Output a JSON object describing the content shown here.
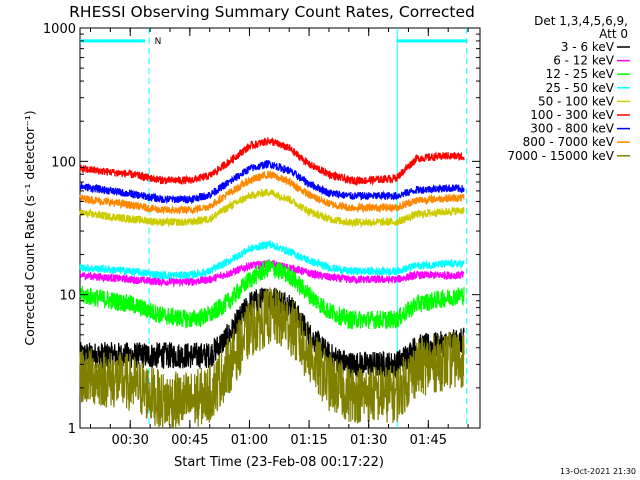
{
  "chart_data": {
    "type": "line",
    "title": "RHESSI Observing Summary Count Rates, Corrected",
    "xlabel": "Start Time (23-Feb-08 00:17:22)",
    "ylabel": "Corrected Count Rate (s⁻¹ detector⁻¹)",
    "x_scale": "time",
    "y_scale": "log",
    "xlim": [
      "00:17:22",
      "01:58:00"
    ],
    "ylim": [
      1,
      1000
    ],
    "x_ticks": [
      "00:30",
      "00:45",
      "01:00",
      "01:15",
      "01:30",
      "01:45"
    ],
    "y_ticks": [
      "1",
      "10",
      "100",
      "1000"
    ],
    "legend_header": [
      "Det 1,3,4,5,6,9,",
      "Att 0"
    ],
    "legend_position": "right, outside plot",
    "timestamp": "13-Oct-2021 21:30",
    "flag_label": "N",
    "vertical_markers": [
      {
        "time": "00:34:45",
        "style": "dashed",
        "color": "#00ffff"
      },
      {
        "time": "01:37:10",
        "style": "solid",
        "color": "#00ffff"
      },
      {
        "time": "01:54:40",
        "style": "dashed",
        "color": "#00ffff"
      }
    ],
    "bars_top": [
      {
        "from": "00:17:22",
        "to": "00:33:45",
        "level": 800
      },
      {
        "from": "01:37:10",
        "to": "01:54:40",
        "level": 800
      }
    ],
    "bar_color": "#00ffff",
    "series": [
      {
        "name": "3 - 6 keV",
        "color": "#000000",
        "times": [
          "00:17:22",
          "00:30",
          "00:38",
          "00:45",
          "00:50",
          "00:55",
          "01:00",
          "01:05",
          "01:10",
          "01:15",
          "01:20",
          "01:25",
          "01:30",
          "01:37",
          "01:42",
          "01:50",
          "01:54"
        ],
        "values": [
          3.5,
          3.5,
          3.5,
          3.5,
          3.5,
          5,
          8.5,
          9.5,
          8.5,
          5,
          3.5,
          3,
          3,
          3,
          4,
          4.3,
          4.5
        ]
      },
      {
        "name": "6 - 12 keV",
        "color": "#ff00ff",
        "times": [
          "00:17:22",
          "00:30",
          "00:38",
          "00:45",
          "00:50",
          "00:55",
          "01:00",
          "01:05",
          "01:10",
          "01:15",
          "01:20",
          "01:25",
          "01:30",
          "01:37",
          "01:42",
          "01:50",
          "01:54"
        ],
        "values": [
          14,
          13,
          12.5,
          12.5,
          13,
          14.5,
          16.5,
          17,
          16,
          14.5,
          13.5,
          13,
          13,
          13,
          14,
          14,
          14
        ]
      },
      {
        "name": "12 - 25 keV",
        "color": "#00ff00",
        "times": [
          "00:17:22",
          "00:30",
          "00:38",
          "00:45",
          "00:50",
          "00:55",
          "01:00",
          "01:05",
          "01:10",
          "01:15",
          "01:20",
          "01:25",
          "01:30",
          "01:37",
          "01:42",
          "01:50",
          "01:54"
        ],
        "values": [
          10,
          8.5,
          7,
          6.5,
          7,
          9,
          13,
          16,
          14,
          10,
          7.5,
          6.5,
          6.5,
          6.5,
          8.5,
          9.5,
          10
        ]
      },
      {
        "name": "25 - 50 keV",
        "color": "#00ffff",
        "times": [
          "00:17:22",
          "00:30",
          "00:38",
          "00:45",
          "00:50",
          "00:55",
          "01:00",
          "01:05",
          "01:10",
          "01:15",
          "01:20",
          "01:25",
          "01:30",
          "01:37",
          "01:42",
          "01:50",
          "01:54"
        ],
        "values": [
          16,
          15,
          14,
          14,
          15,
          18,
          22,
          24,
          21,
          18,
          16,
          15,
          15,
          15,
          16.5,
          17,
          17
        ]
      },
      {
        "name": "50 - 100 keV",
        "color": "#cccc00",
        "times": [
          "00:17:22",
          "00:30",
          "00:38",
          "00:45",
          "00:50",
          "00:55",
          "01:00",
          "01:05",
          "01:10",
          "01:15",
          "01:20",
          "01:25",
          "01:30",
          "01:37",
          "01:42",
          "01:50",
          "01:54"
        ],
        "values": [
          41,
          37,
          35,
          35,
          37,
          46,
          55,
          59,
          52,
          42,
          37,
          35,
          35,
          35,
          40,
          42,
          43
        ]
      },
      {
        "name": "100 - 300 keV",
        "color": "#ff0000",
        "times": [
          "00:17:22",
          "00:30",
          "00:38",
          "00:45",
          "00:50",
          "00:55",
          "01:00",
          "01:05",
          "01:10",
          "01:15",
          "01:20",
          "01:25",
          "01:30",
          "01:37",
          "01:42",
          "01:50",
          "01:54"
        ],
        "values": [
          88,
          80,
          72,
          72,
          78,
          100,
          130,
          143,
          125,
          95,
          80,
          72,
          72,
          75,
          105,
          110,
          108
        ]
      },
      {
        "name": "300 - 800 keV",
        "color": "#0000ff",
        "times": [
          "00:17:22",
          "00:30",
          "00:38",
          "00:45",
          "00:50",
          "00:55",
          "01:00",
          "01:05",
          "01:10",
          "01:15",
          "01:20",
          "01:25",
          "01:30",
          "01:37",
          "01:42",
          "01:50",
          "01:54"
        ],
        "values": [
          65,
          57,
          52,
          52,
          56,
          70,
          88,
          96,
          85,
          68,
          58,
          55,
          55,
          55,
          61,
          63,
          62
        ]
      },
      {
        "name": "800 - 7000 keV",
        "color": "#ff8800",
        "times": [
          "00:17:22",
          "00:30",
          "00:38",
          "00:45",
          "00:50",
          "00:55",
          "01:00",
          "01:05",
          "01:10",
          "01:15",
          "01:20",
          "01:25",
          "01:30",
          "01:37",
          "01:42",
          "01:50",
          "01:54"
        ],
        "values": [
          53,
          47,
          43,
          43,
          46,
          58,
          72,
          80,
          70,
          56,
          48,
          45,
          45,
          45,
          51,
          53,
          53
        ]
      },
      {
        "name": "7000 - 15000 keV",
        "color": "#808000",
        "times": [
          "00:17:22",
          "00:30",
          "00:38",
          "00:45",
          "00:50",
          "00:55",
          "01:00",
          "01:05",
          "01:10",
          "01:15",
          "01:20",
          "01:25",
          "01:30",
          "01:37",
          "01:42",
          "01:50",
          "01:54"
        ],
        "values": [
          2.5,
          2.2,
          1.6,
          1.6,
          1.8,
          3,
          5.5,
          7,
          6,
          3.5,
          2.2,
          1.8,
          1.8,
          1.8,
          2.8,
          3.2,
          3.3
        ]
      }
    ]
  }
}
